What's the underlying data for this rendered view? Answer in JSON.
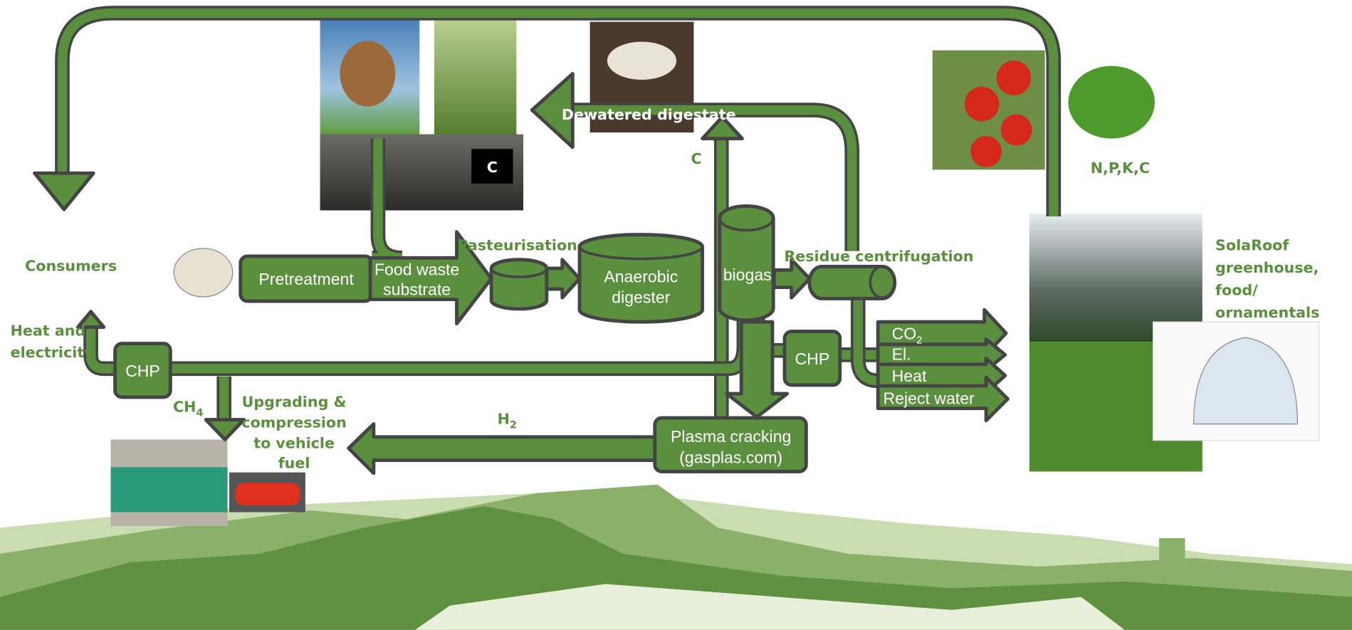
{
  "labels": {
    "consumers": "Consumers",
    "heat_and_electricity": [
      "Heat and",
      "electricity"
    ],
    "pretreatment": "Pretreatment",
    "food_waste_substrate": [
      "Food waste",
      "substrate"
    ],
    "pasteurisation": "Pasteurisation",
    "anaerobic_digester": [
      "Anaerobic",
      "digester"
    ],
    "biogas": "biogas",
    "residue_centrifugation": "Residue centrifugation",
    "dewatered_digestate": "Dewatered digestate",
    "carbon_arrow": "C",
    "carbon_box": "C",
    "nutrients": "N,P,K,C",
    "solaroof": [
      "SolaRoof",
      "greenhouse,",
      "food/",
      "ornamentals"
    ],
    "chp_left": "CHP",
    "chp_right": "CHP",
    "ch4": {
      "main": "CH",
      "sub": "4"
    },
    "upgrading": [
      "Upgrading &",
      "compression",
      "to vehicle",
      "fuel"
    ],
    "h2": {
      "main": "H",
      "sub": "2"
    },
    "plasma_cracking": [
      "Plasma cracking",
      "(gasplas.com)"
    ],
    "outputs": [
      {
        "main": "CO",
        "sub": "2"
      },
      {
        "main": "El."
      },
      {
        "main": "Heat"
      },
      {
        "main": "Reject water"
      }
    ]
  }
}
